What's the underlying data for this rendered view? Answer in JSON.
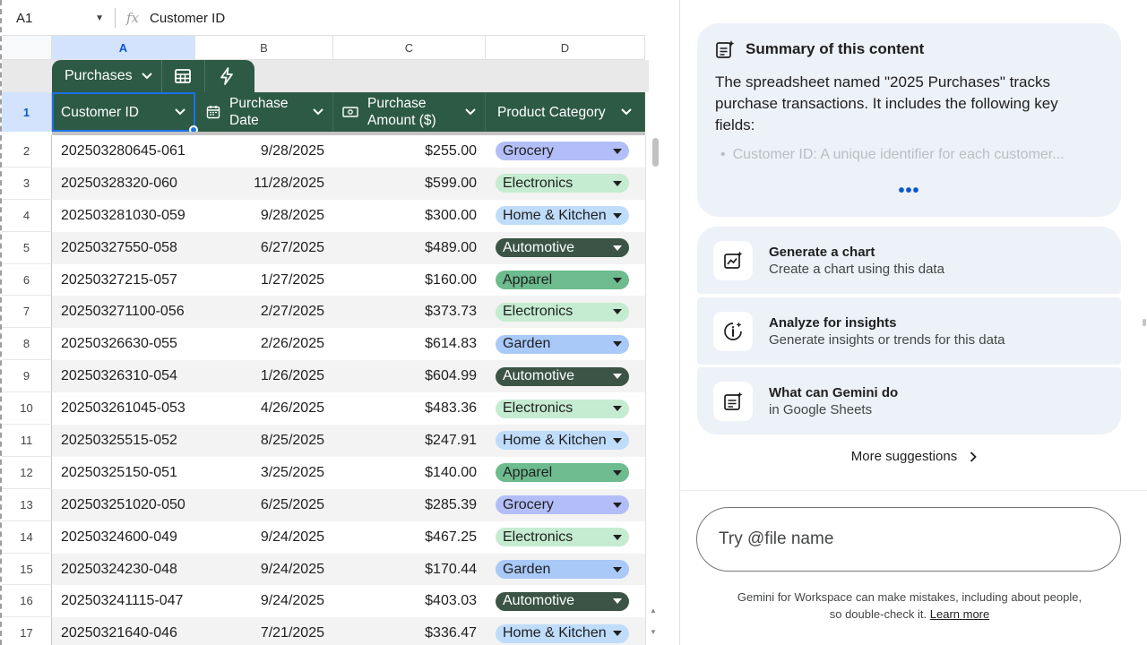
{
  "formula_bar": {
    "cell_ref": "A1",
    "fx": "fx",
    "content": "Customer ID"
  },
  "columns": [
    "A",
    "B",
    "C",
    "D"
  ],
  "table": {
    "name": "Purchases",
    "headers": [
      "Customer ID",
      "Purchase Date",
      "Purchase Amount ($)",
      "Product Category"
    ],
    "header_row_number": "1",
    "rows": [
      {
        "n": "2",
        "id": "202503280645-061",
        "date": "9/28/2025",
        "amount": "$255.00",
        "category": "Grocery"
      },
      {
        "n": "3",
        "id": "20250328320-060",
        "date": "11/28/2025",
        "amount": "$599.00",
        "category": "Electronics"
      },
      {
        "n": "4",
        "id": "202503281030-059",
        "date": "9/28/2025",
        "amount": "$300.00",
        "category": "Home & Kitchen"
      },
      {
        "n": "5",
        "id": "20250327550-058",
        "date": "6/27/2025",
        "amount": "$489.00",
        "category": "Automotive"
      },
      {
        "n": "6",
        "id": "20250327215-057",
        "date": "1/27/2025",
        "amount": "$160.00",
        "category": "Apparel"
      },
      {
        "n": "7",
        "id": "202503271100-056",
        "date": "2/27/2025",
        "amount": "$373.73",
        "category": "Electronics"
      },
      {
        "n": "8",
        "id": "20250326630-055",
        "date": "2/26/2025",
        "amount": "$614.83",
        "category": "Garden"
      },
      {
        "n": "9",
        "id": "20250326310-054",
        "date": "1/26/2025",
        "amount": "$604.99",
        "category": "Automotive"
      },
      {
        "n": "10",
        "id": "202503261045-053",
        "date": "4/26/2025",
        "amount": "$483.36",
        "category": "Electronics"
      },
      {
        "n": "11",
        "id": "20250325515-052",
        "date": "8/25/2025",
        "amount": "$247.91",
        "category": "Home & Kitchen"
      },
      {
        "n": "12",
        "id": "20250325150-051",
        "date": "3/25/2025",
        "amount": "$140.00",
        "category": "Apparel"
      },
      {
        "n": "13",
        "id": "202503251020-050",
        "date": "6/25/2025",
        "amount": "$285.39",
        "category": "Grocery"
      },
      {
        "n": "14",
        "id": "20250324600-049",
        "date": "9/24/2025",
        "amount": "$467.25",
        "category": "Electronics"
      },
      {
        "n": "15",
        "id": "20250324230-048",
        "date": "9/24/2025",
        "amount": "$170.44",
        "category": "Garden"
      },
      {
        "n": "16",
        "id": "202503241115-047",
        "date": "9/24/2025",
        "amount": "$403.03",
        "category": "Automotive"
      },
      {
        "n": "17",
        "id": "20250321640-046",
        "date": "7/21/2025",
        "amount": "$336.47",
        "category": "Home & Kitchen"
      }
    ]
  },
  "category_colors": {
    "Grocery": {
      "bg": "#b3bef8",
      "fg": "#1f1f1f"
    },
    "Electronics": {
      "bg": "#c5ecd0",
      "fg": "#1f1f1f"
    },
    "Home & Kitchen": {
      "bg": "#bfdcfb",
      "fg": "#1f1f1f"
    },
    "Automotive": {
      "bg": "#3b5446",
      "fg": "#ffffff"
    },
    "Apparel": {
      "bg": "#6dbb8e",
      "fg": "#1f1f1f"
    },
    "Garden": {
      "bg": "#a9c9f8",
      "fg": "#1f1f1f"
    }
  },
  "gemini": {
    "summary_title": "Summary of this content",
    "summary_text": "The spreadsheet named \"2025 Purchases\" tracks purchase transactions. It includes the following key fields:",
    "summary_bullet": "Customer ID: A unique identifier for each customer...",
    "summary_more": "•••",
    "suggestions": [
      {
        "title": "Generate a chart",
        "subtitle": "Create a chart using this data",
        "icon": "chart-sparkle-icon"
      },
      {
        "title": "Analyze for insights",
        "subtitle": "Generate insights or trends for this data",
        "icon": "insights-icon"
      },
      {
        "title": "What can Gemini do",
        "subtitle": "in Google Sheets",
        "icon": "sheets-sparkle-icon"
      }
    ],
    "more_suggestions": "More suggestions",
    "prompt_placeholder": "Try @file name",
    "disclaimer": "Gemini for Workspace can make mistakes, including about people, so double-check it.",
    "learn_more": "Learn more"
  }
}
